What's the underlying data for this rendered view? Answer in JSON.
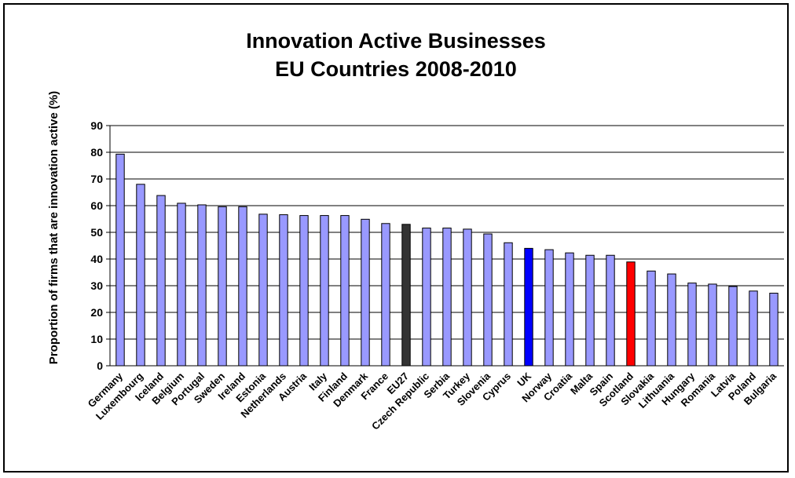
{
  "chart_data": {
    "type": "bar",
    "title": "Innovation Active Businesses",
    "subtitle": "EU Countries 2008-2010",
    "ylabel": "Proportion of firms that are innovation active (%)",
    "xlabel": "",
    "ylim": [
      0,
      90
    ],
    "yticks": [
      0,
      10,
      20,
      30,
      40,
      50,
      60,
      70,
      80,
      90
    ],
    "grid": true,
    "legend": "none",
    "default_color": "#9999ff",
    "categories": [
      "Germany",
      "Luxembourg",
      "Iceland",
      "Belgium",
      "Portugal",
      "Sweden",
      "Ireland",
      "Estonia",
      "Netherlands",
      "Austria",
      "Italy",
      "Finland",
      "Denmark",
      "France",
      "EU27",
      "Czech Republic",
      "Serbia",
      "Turkey",
      "Slovenia",
      "Cyprus",
      "UK",
      "Norway",
      "Croatia",
      "Malta",
      "Spain",
      "Scotland",
      "Slovakia",
      "Lithuania",
      "Hungary",
      "Romania",
      "Latvia",
      "Poland",
      "Bulgaria"
    ],
    "values": [
      79.3,
      68,
      63.8,
      60.9,
      60.3,
      59.6,
      59.6,
      56.8,
      56.6,
      56.3,
      56.3,
      56.3,
      54.9,
      53.3,
      53,
      51.6,
      51.6,
      51.2,
      49.4,
      46.1,
      44,
      43.5,
      42.3,
      41.4,
      41.4,
      38.9,
      35.5,
      34.4,
      31,
      30.6,
      29.7,
      28,
      27.2
    ],
    "highlight_colors": {
      "EU27": "#333333",
      "UK": "#0000ff",
      "Scotland": "#ff0000"
    }
  }
}
